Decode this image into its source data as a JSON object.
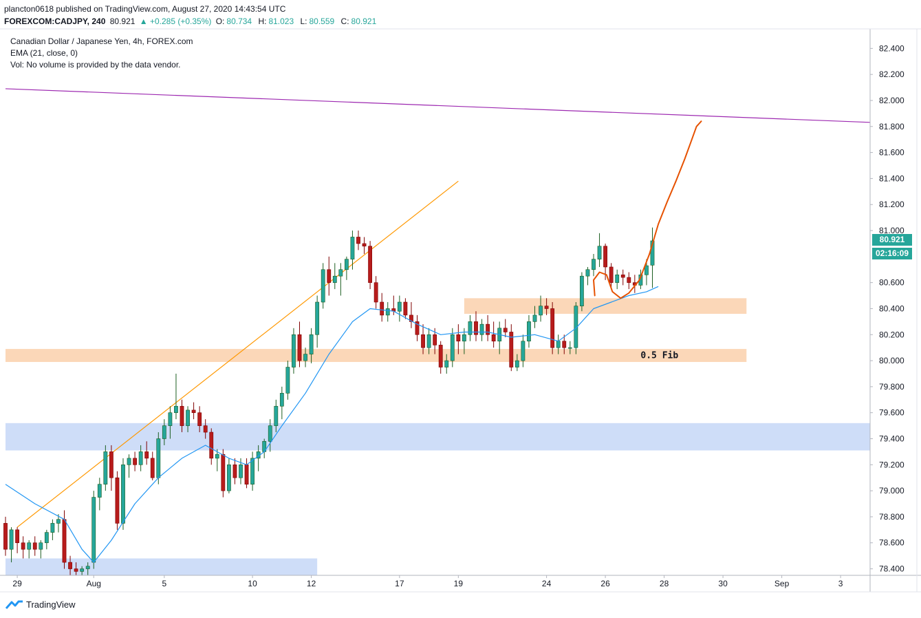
{
  "header": {
    "published": "plancton0618 published on TradingView.com, August 27, 2020 14:43:54 UTC",
    "symbol": "FOREXCOM:CADJPY, 240",
    "last": "80.921",
    "change": "▲ +0.285 (+0.35%)",
    "open_label": "O:",
    "open": "80.734",
    "high_label": "H:",
    "high": "81.023",
    "low_label": "L:",
    "low": "80.559",
    "close_label": "C:",
    "close": "80.921"
  },
  "legend": {
    "title": "Canadian Dollar / Japanese Yen, 4h, FOREX.com",
    "ema": "EMA (21, close, 0)",
    "vol": "Vol: No volume is provided by the data vendor."
  },
  "price_tag": {
    "price": "80.921",
    "countdown": "02:16:09"
  },
  "brand": {
    "name": "TradingView"
  },
  "colors": {
    "up": "#26a69a",
    "down": "#ef5350",
    "candle_up_fill": "#26a69a",
    "candle_down_fill": "#b71c1c",
    "ema": "#2196f3",
    "trendline": "#9c27b0",
    "orange": "#ff9800",
    "sketch": "#e65100",
    "zone_orange": "#fbd3b0",
    "zone_blue": "#c9d9f7",
    "grid": "#e0e3eb"
  },
  "chart_data": {
    "type": "candlestick",
    "symbol": "CADJPY",
    "timeframe": "4h",
    "ylim": [
      78.35,
      82.55
    ],
    "y_ticks": [
      "82.400",
      "82.200",
      "82.000",
      "81.800",
      "81.600",
      "81.400",
      "81.200",
      "81.000",
      "80.600",
      "80.400",
      "80.200",
      "80.000",
      "79.800",
      "79.600",
      "79.400",
      "79.200",
      "79.000",
      "78.800",
      "78.600",
      "78.400"
    ],
    "x_ticks": [
      {
        "label": "29",
        "bar": 2
      },
      {
        "label": "Aug",
        "bar": 15
      },
      {
        "label": "5",
        "bar": 27
      },
      {
        "label": "10",
        "bar": 42
      },
      {
        "label": "12",
        "bar": 52
      },
      {
        "label": "17",
        "bar": 67
      },
      {
        "label": "19",
        "bar": 77
      },
      {
        "label": "24",
        "bar": 92
      },
      {
        "label": "26",
        "bar": 102
      },
      {
        "label": "28",
        "bar": 112
      },
      {
        "label": "30",
        "bar": 122
      },
      {
        "label": "Sep",
        "bar": 132
      },
      {
        "label": "3",
        "bar": 142
      }
    ],
    "candles": [
      [
        78.75,
        78.8,
        78.5,
        78.55
      ],
      [
        78.55,
        78.72,
        78.45,
        78.7
      ],
      [
        78.7,
        78.72,
        78.52,
        78.6
      ],
      [
        78.6,
        78.65,
        78.48,
        78.55
      ],
      [
        78.55,
        78.62,
        78.48,
        78.6
      ],
      [
        78.6,
        78.65,
        78.5,
        78.55
      ],
      [
        78.55,
        78.62,
        78.48,
        78.6
      ],
      [
        78.6,
        78.7,
        78.55,
        78.68
      ],
      [
        78.68,
        78.78,
        78.62,
        78.75
      ],
      [
        78.75,
        78.82,
        78.68,
        78.78
      ],
      [
        78.78,
        78.85,
        78.4,
        78.45
      ],
      [
        78.45,
        78.5,
        78.35,
        78.4
      ],
      [
        78.4,
        78.45,
        78.35,
        78.38
      ],
      [
        78.38,
        78.42,
        78.35,
        78.4
      ],
      [
        78.4,
        78.45,
        78.35,
        78.42
      ],
      [
        78.45,
        79.0,
        78.4,
        78.95
      ],
      [
        78.95,
        79.1,
        78.85,
        79.05
      ],
      [
        79.05,
        79.35,
        79.0,
        79.3
      ],
      [
        79.3,
        79.35,
        79.0,
        79.1
      ],
      [
        79.1,
        79.15,
        78.7,
        78.75
      ],
      [
        78.75,
        79.25,
        78.7,
        79.2
      ],
      [
        79.2,
        79.28,
        79.1,
        79.25
      ],
      [
        79.25,
        79.3,
        79.15,
        79.2
      ],
      [
        79.2,
        79.35,
        79.15,
        79.3
      ],
      [
        79.3,
        79.38,
        79.2,
        79.25
      ],
      [
        79.25,
        79.3,
        79.08,
        79.1
      ],
      [
        79.1,
        79.45,
        79.05,
        79.4
      ],
      [
        79.4,
        79.55,
        79.35,
        79.5
      ],
      [
        79.5,
        79.65,
        79.4,
        79.6
      ],
      [
        79.6,
        79.9,
        79.55,
        79.65
      ],
      [
        79.65,
        79.7,
        79.45,
        79.5
      ],
      [
        79.5,
        79.65,
        79.45,
        79.62
      ],
      [
        79.62,
        79.68,
        79.55,
        79.6
      ],
      [
        79.6,
        79.65,
        79.45,
        79.5
      ],
      [
        79.5,
        79.55,
        79.4,
        79.45
      ],
      [
        79.45,
        79.48,
        79.2,
        79.25
      ],
      [
        79.25,
        79.32,
        79.15,
        79.28
      ],
      [
        79.28,
        79.32,
        78.95,
        79.0
      ],
      [
        79.0,
        79.25,
        78.98,
        79.2
      ],
      [
        79.2,
        79.25,
        79.05,
        79.1
      ],
      [
        79.1,
        79.25,
        79.05,
        79.2
      ],
      [
        79.2,
        79.25,
        79.02,
        79.05
      ],
      [
        79.05,
        79.3,
        79.0,
        79.25
      ],
      [
        79.25,
        79.35,
        79.15,
        79.3
      ],
      [
        79.3,
        79.4,
        79.25,
        79.38
      ],
      [
        79.38,
        79.55,
        79.3,
        79.5
      ],
      [
        79.5,
        79.7,
        79.45,
        79.65
      ],
      [
        79.65,
        79.8,
        79.55,
        79.75
      ],
      [
        79.75,
        80.0,
        79.7,
        79.95
      ],
      [
        79.95,
        80.25,
        79.9,
        80.2
      ],
      [
        80.2,
        80.3,
        79.95,
        80.0
      ],
      [
        80.0,
        80.1,
        79.95,
        80.05
      ],
      [
        80.05,
        80.25,
        79.98,
        80.2
      ],
      [
        80.2,
        80.5,
        80.1,
        80.45
      ],
      [
        80.45,
        80.75,
        80.4,
        80.7
      ],
      [
        80.7,
        80.8,
        80.5,
        80.6
      ],
      [
        80.6,
        80.75,
        80.55,
        80.65
      ],
      [
        80.65,
        80.75,
        80.5,
        80.7
      ],
      [
        80.7,
        80.8,
        80.62,
        80.78
      ],
      [
        80.78,
        81.0,
        80.7,
        80.95
      ],
      [
        80.95,
        81.0,
        80.85,
        80.9
      ],
      [
        80.9,
        80.95,
        80.82,
        80.88
      ],
      [
        80.88,
        80.92,
        80.55,
        80.6
      ],
      [
        80.6,
        80.65,
        80.4,
        80.45
      ],
      [
        80.45,
        80.52,
        80.3,
        80.35
      ],
      [
        80.35,
        80.45,
        80.3,
        80.4
      ],
      [
        80.4,
        80.5,
        80.35,
        80.38
      ],
      [
        80.38,
        80.5,
        80.3,
        80.45
      ],
      [
        80.45,
        80.48,
        80.32,
        80.35
      ],
      [
        80.35,
        80.45,
        80.25,
        80.3
      ],
      [
        80.3,
        80.35,
        80.15,
        80.2
      ],
      [
        80.2,
        80.28,
        80.05,
        80.1
      ],
      [
        80.1,
        80.25,
        80.05,
        80.2
      ],
      [
        80.2,
        80.25,
        80.05,
        80.12
      ],
      [
        80.12,
        80.15,
        79.9,
        79.95
      ],
      [
        79.95,
        80.05,
        79.9,
        80.0
      ],
      [
        80.0,
        80.25,
        79.95,
        80.2
      ],
      [
        80.2,
        80.28,
        80.05,
        80.15
      ],
      [
        80.15,
        80.25,
        80.05,
        80.2
      ],
      [
        80.2,
        80.35,
        80.15,
        80.3
      ],
      [
        80.3,
        80.38,
        80.15,
        80.2
      ],
      [
        80.2,
        80.32,
        80.15,
        80.28
      ],
      [
        80.28,
        80.35,
        80.15,
        80.2
      ],
      [
        80.2,
        80.3,
        80.1,
        80.15
      ],
      [
        80.15,
        80.3,
        80.05,
        80.25
      ],
      [
        80.25,
        80.32,
        80.18,
        80.22
      ],
      [
        80.22,
        80.28,
        79.92,
        79.95
      ],
      [
        79.95,
        80.05,
        79.92,
        80.0
      ],
      [
        80.0,
        80.2,
        79.95,
        80.15
      ],
      [
        80.15,
        80.35,
        80.1,
        80.3
      ],
      [
        80.3,
        80.42,
        80.25,
        80.35
      ],
      [
        80.35,
        80.5,
        80.3,
        80.42
      ],
      [
        80.42,
        80.48,
        80.35,
        80.4
      ],
      [
        80.4,
        80.45,
        80.05,
        80.1
      ],
      [
        80.1,
        80.2,
        80.05,
        80.15
      ],
      [
        80.15,
        80.2,
        80.05,
        80.1
      ],
      [
        80.1,
        80.15,
        80.05,
        80.1
      ],
      [
        80.1,
        80.45,
        80.05,
        80.42
      ],
      [
        80.42,
        80.68,
        80.38,
        80.65
      ],
      [
        80.65,
        80.72,
        80.58,
        80.7
      ],
      [
        80.7,
        80.82,
        80.65,
        80.78
      ],
      [
        80.78,
        80.98,
        80.72,
        80.88
      ],
      [
        80.88,
        80.9,
        80.62,
        80.72
      ],
      [
        80.72,
        80.75,
        80.55,
        80.6
      ],
      [
        80.6,
        80.7,
        80.55,
        80.66
      ],
      [
        80.66,
        80.7,
        80.58,
        80.64
      ],
      [
        80.64,
        80.68,
        80.55,
        80.6
      ],
      [
        80.6,
        80.66,
        80.52,
        80.58
      ],
      [
        80.58,
        80.7,
        80.55,
        80.66
      ],
      [
        80.66,
        80.78,
        80.58,
        80.73
      ],
      [
        80.734,
        81.023,
        80.559,
        80.921
      ]
    ],
    "ema_21": [
      [
        0,
        79.05
      ],
      [
        5,
        78.9
      ],
      [
        10,
        78.78
      ],
      [
        13,
        78.55
      ],
      [
        15,
        78.45
      ],
      [
        18,
        78.62
      ],
      [
        22,
        78.9
      ],
      [
        26,
        79.1
      ],
      [
        30,
        79.25
      ],
      [
        34,
        79.35
      ],
      [
        38,
        79.25
      ],
      [
        41,
        79.2
      ],
      [
        44,
        79.3
      ],
      [
        47,
        79.5
      ],
      [
        51,
        79.75
      ],
      [
        55,
        80.05
      ],
      [
        59,
        80.3
      ],
      [
        62,
        80.4
      ],
      [
        66,
        80.38
      ],
      [
        70,
        80.28
      ],
      [
        74,
        80.2
      ],
      [
        78,
        80.22
      ],
      [
        82,
        80.22
      ],
      [
        86,
        80.18
      ],
      [
        90,
        80.2
      ],
      [
        94,
        80.15
      ],
      [
        97,
        80.25
      ],
      [
        100,
        80.4
      ],
      [
        103,
        80.45
      ],
      [
        106,
        80.5
      ],
      [
        109,
        80.53
      ],
      [
        111,
        80.57
      ]
    ],
    "horizontal_zones": [
      {
        "color": "orange",
        "from_bar": 78,
        "to_bar": 126,
        "low": 80.36,
        "high": 80.48
      },
      {
        "color": "orange",
        "from_bar": 0,
        "to_bar": 126,
        "low": 79.99,
        "high": 80.09,
        "label": "0.5 Fib"
      },
      {
        "color": "blue",
        "from_bar": 0,
        "to_bar": 148,
        "low": 79.31,
        "high": 79.52
      },
      {
        "color": "blue",
        "from_bar": 0,
        "to_bar": 53,
        "low": 78.35,
        "high": 78.48
      }
    ],
    "trendlines": [
      {
        "color": "purple",
        "from": [
          0,
          82.09
        ],
        "to": [
          148,
          81.83
        ]
      },
      {
        "color": "orange",
        "from": [
          2,
          78.72
        ],
        "to": [
          77,
          81.38
        ]
      }
    ],
    "sketch_path": [
      [
        100.2,
        80.5
      ],
      [
        100.0,
        80.62
      ],
      [
        101.0,
        80.68
      ],
      [
        102.2,
        80.66
      ],
      [
        103.2,
        80.53
      ],
      [
        104.6,
        80.48
      ],
      [
        106.0,
        80.52
      ],
      [
        107.8,
        80.62
      ],
      [
        109.5,
        80.82
      ],
      [
        111.0,
        81.05
      ],
      [
        112.5,
        81.22
      ],
      [
        114.0,
        81.38
      ],
      [
        115.5,
        81.55
      ],
      [
        116.7,
        81.7
      ],
      [
        117.5,
        81.8
      ],
      [
        118.3,
        81.84
      ]
    ]
  }
}
